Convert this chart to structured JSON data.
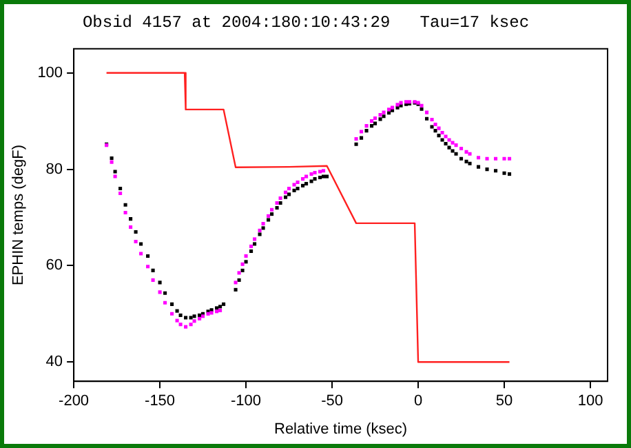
{
  "chart_data": {
    "type": "scatter",
    "title": "Obsid 4157 at 2004:180:10:43:29   Tau=17 ksec",
    "xlabel": "Relative time (ksec)",
    "ylabel": "EPHIN temps (degF)",
    "xlim": [
      -200,
      110
    ],
    "xticks": [
      -200,
      -150,
      -100,
      -50,
      0,
      50,
      100
    ],
    "ylim": [
      36,
      105
    ],
    "yticks": [
      40,
      60,
      80,
      100
    ],
    "grid": false,
    "legend": false,
    "series": [
      {
        "type": "line",
        "color": "#ff2020",
        "x": [
          -181,
          -135.6,
          -135,
          -113,
          -106,
          -75,
          -53,
          -36,
          -2,
          0,
          53
        ],
        "values": [
          100,
          100,
          92.4,
          92.4,
          80.4,
          80.5,
          80.7,
          68.8,
          68.8,
          40,
          40
        ]
      },
      {
        "color": "#ff00ff",
        "marker": "square",
        "x": [
          -181,
          -178,
          -176,
          -173,
          -170,
          -167,
          -164,
          -161,
          -157,
          -154,
          -150,
          -147,
          -143,
          -140,
          -138,
          -135,
          -132,
          -130,
          -127,
          -125,
          -122,
          -120,
          -117,
          -115,
          -106,
          -104,
          -102,
          -100,
          -97,
          -95,
          -92,
          -90,
          -87,
          -85,
          -82,
          -80,
          -77,
          -75,
          -72,
          -70,
          -67,
          -65,
          -62,
          -60,
          -57,
          -55,
          -36,
          -33,
          -30,
          -27,
          -25,
          -22,
          -20,
          -17,
          -15,
          -12,
          -10,
          -7,
          -5,
          -2,
          0,
          2,
          5,
          8,
          10,
          12,
          14,
          16,
          18,
          20,
          22,
          25,
          28,
          30,
          35,
          40,
          45,
          50,
          53
        ],
        "values": [
          85,
          81.5,
          78.5,
          75,
          71,
          68,
          65,
          62.5,
          59.8,
          57,
          54.5,
          52.3,
          50,
          48.6,
          47.8,
          47.3,
          47.8,
          48.5,
          49,
          49.5,
          50,
          50.2,
          50.5,
          50.7,
          56.5,
          58.5,
          60.3,
          62,
          64,
          65.5,
          67.3,
          68.7,
          70.3,
          71.6,
          73,
          74,
          75.2,
          76,
          76.8,
          77.3,
          78,
          78.5,
          79,
          79.3,
          79.5,
          79.7,
          86.3,
          87.8,
          89,
          90,
          90.6,
          91.3,
          91.8,
          92.4,
          92.8,
          93.4,
          93.8,
          94,
          94,
          94,
          93.8,
          93.2,
          91.8,
          90.3,
          89.3,
          88.5,
          87.6,
          86.8,
          86.1,
          85.5,
          85,
          84.3,
          83.6,
          83.2,
          82.4,
          82.2,
          82.2,
          82.2,
          82.2
        ]
      },
      {
        "color": "#000000",
        "marker": "square",
        "x": [
          -181,
          -178,
          -176,
          -173,
          -170,
          -167,
          -164,
          -161,
          -157,
          -154,
          -150,
          -147,
          -143,
          -140,
          -138,
          -135,
          -132,
          -130,
          -127,
          -125,
          -122,
          -120,
          -117,
          -115,
          -113,
          -106,
          -104,
          -102,
          -100,
          -97,
          -95,
          -92,
          -90,
          -87,
          -85,
          -82,
          -80,
          -77,
          -75,
          -72,
          -70,
          -67,
          -65,
          -62,
          -60,
          -57,
          -55,
          -53,
          -36,
          -33,
          -30,
          -27,
          -25,
          -22,
          -20,
          -17,
          -15,
          -12,
          -10,
          -7,
          -5,
          -2,
          0,
          2,
          5,
          8,
          10,
          12,
          14,
          16,
          18,
          20,
          22,
          25,
          28,
          30,
          35,
          40,
          45,
          50,
          53
        ],
        "values": [
          85.2,
          82.3,
          79.5,
          76,
          72.6,
          69.7,
          67,
          64.5,
          62,
          59,
          56.5,
          54.3,
          52,
          50.6,
          49.7,
          49.2,
          49.2,
          49.5,
          49.7,
          50,
          50.5,
          50.8,
          51.2,
          51.5,
          52,
          55,
          57,
          59,
          60.8,
          63,
          64.5,
          66.5,
          67.8,
          69.5,
          70.7,
          72,
          73,
          74.2,
          74.8,
          75.6,
          76,
          76.6,
          77,
          77.5,
          78,
          78.3,
          78.5,
          78.5,
          85.2,
          86.5,
          88,
          89,
          89.5,
          90.4,
          91,
          91.7,
          92.2,
          92.8,
          93.2,
          93.5,
          93.6,
          93.8,
          93.5,
          92.5,
          90.5,
          88.8,
          88,
          87,
          86.1,
          85.3,
          84.5,
          83.8,
          83.2,
          82.2,
          81.6,
          81.2,
          80.5,
          80,
          79.7,
          79.2,
          79
        ]
      }
    ]
  }
}
